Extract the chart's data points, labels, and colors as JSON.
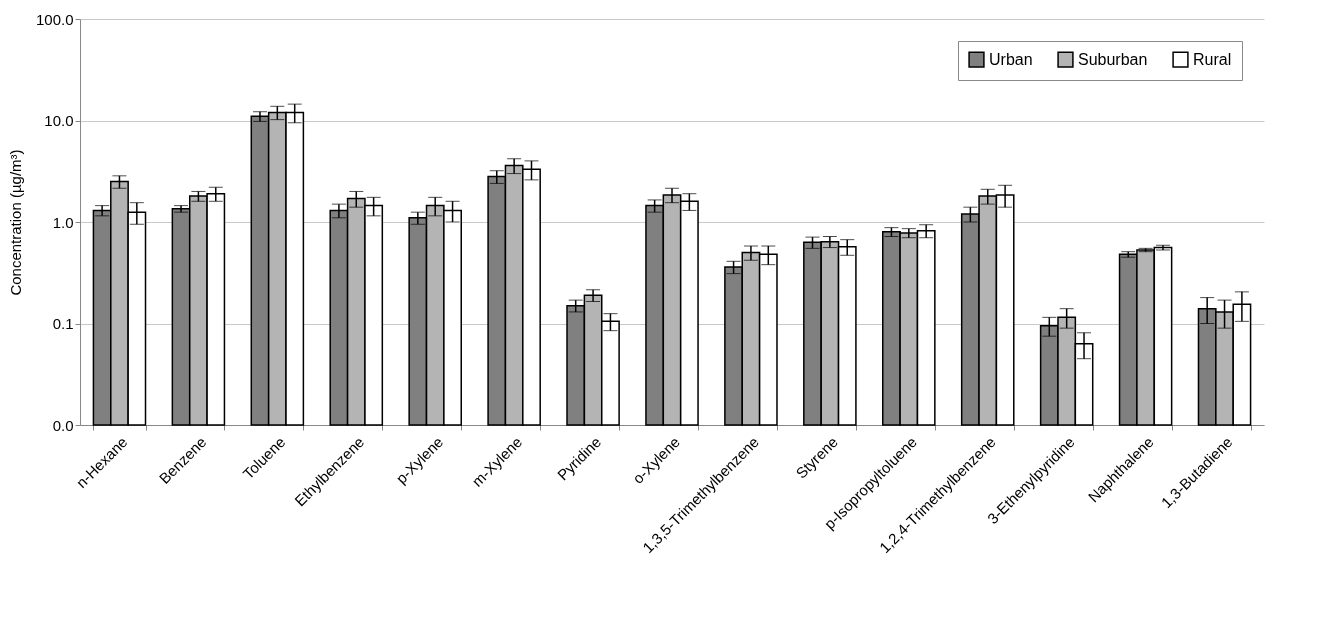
{
  "chart_data": {
    "type": "bar",
    "ylabel": "Concentration (µg/m³)",
    "categories": [
      "n-Hexane",
      "Benzene",
      "Toluene",
      "Ethylbenzene",
      "p-Xylene",
      "m-Xylene",
      "Pyridine",
      "o-Xylene",
      "1,3,5-Trimethylbenzene",
      "Styrene",
      "p-Isopropyltoluene",
      "1,2,4-Trimethylbenzene",
      "3-Ethenylpyridine",
      "Naphthalene",
      "1,3-Butadiene"
    ],
    "series": [
      {
        "name": "Urban",
        "color": "#808080",
        "values": [
          1.3,
          1.35,
          11,
          1.3,
          1.1,
          2.8,
          0.15,
          1.45,
          0.36,
          0.63,
          0.8,
          1.2,
          0.095,
          0.48,
          0.14
        ],
        "errors": [
          0.15,
          0.1,
          1.2,
          0.2,
          0.15,
          0.4,
          0.02,
          0.2,
          0.05,
          0.08,
          0.08,
          0.2,
          0.02,
          0.03,
          0.04
        ]
      },
      {
        "name": "Suburban",
        "color": "#b4b4b4",
        "values": [
          2.5,
          1.8,
          12,
          1.7,
          1.45,
          3.6,
          0.19,
          1.85,
          0.5,
          0.64,
          0.78,
          1.8,
          0.115,
          0.53,
          0.13
        ],
        "errors": [
          0.35,
          0.2,
          1.8,
          0.3,
          0.3,
          0.6,
          0.025,
          0.3,
          0.08,
          0.08,
          0.08,
          0.3,
          0.025,
          0.02,
          0.04
        ]
      },
      {
        "name": "Rural",
        "color": "#ffffff",
        "values": [
          1.25,
          1.9,
          12,
          1.45,
          1.3,
          3.3,
          0.105,
          1.6,
          0.48,
          0.57,
          0.82,
          1.85,
          0.063,
          0.56,
          0.155
        ],
        "errors": [
          0.3,
          0.3,
          2.5,
          0.3,
          0.3,
          0.7,
          0.02,
          0.3,
          0.1,
          0.1,
          0.12,
          0.45,
          0.018,
          0.03,
          0.05
        ]
      }
    ],
    "log": true,
    "ylim": [
      0.01,
      100
    ],
    "yticks": [
      {
        "value": 0.01,
        "label": "0.0"
      },
      {
        "value": 0.1,
        "label": "0.1"
      },
      {
        "value": 1,
        "label": "1.0"
      },
      {
        "value": 10,
        "label": "10.0"
      },
      {
        "value": 100,
        "label": "100.0"
      }
    ],
    "grid": "y",
    "legend": "top right"
  }
}
